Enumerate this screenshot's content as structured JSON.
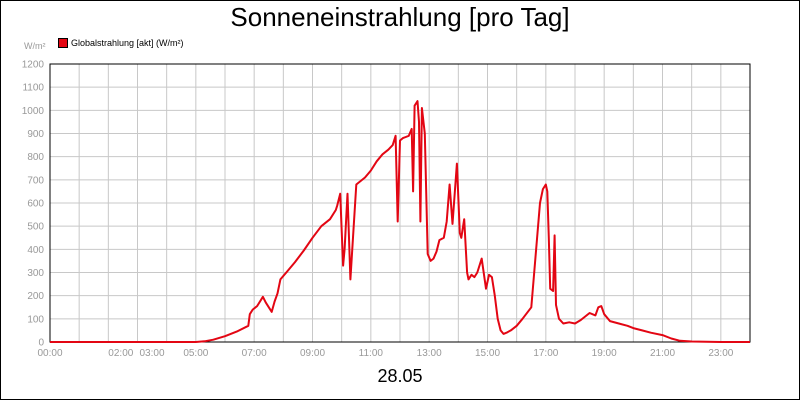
{
  "chart_data": {
    "type": "line",
    "title": "Sonneneinstrahlung [pro Tag]",
    "ylabel": "W/m²",
    "xlabel": "28.05",
    "ylim": [
      0,
      1200
    ],
    "xlim": [
      0,
      24
    ],
    "grid": true,
    "legend_position": "top-left",
    "yticks": [
      "0",
      "100",
      "200",
      "300",
      "400",
      "500",
      "600",
      "700",
      "800",
      "900",
      "1000",
      "1100",
      "1200"
    ],
    "xticks": [
      {
        "hour": 0,
        "label": "00:00"
      },
      {
        "hour": 2,
        "label": "02:00"
      },
      {
        "hour": 3,
        "label": "03:00"
      },
      {
        "hour": 5,
        "label": "05:00"
      },
      {
        "hour": 7,
        "label": "07:00"
      },
      {
        "hour": 9,
        "label": "09:00"
      },
      {
        "hour": 11,
        "label": "11:00"
      },
      {
        "hour": 13,
        "label": "13:00"
      },
      {
        "hour": 15,
        "label": "15:00"
      },
      {
        "hour": 17,
        "label": "17:00"
      },
      {
        "hour": 19,
        "label": "19:00"
      },
      {
        "hour": 21,
        "label": "21:00"
      },
      {
        "hour": 23,
        "label": "23:00"
      }
    ],
    "colors": {
      "series": "#e30613",
      "grid": "#c8c8c8",
      "axis": "#000000"
    },
    "series": [
      {
        "name": "Globalstrahlung [akt] (W/m²)",
        "x": [
          0,
          5.0,
          5.3,
          5.6,
          6.0,
          6.4,
          6.8,
          6.85,
          6.95,
          7.1,
          7.3,
          7.4,
          7.5,
          7.6,
          7.7,
          7.8,
          7.9,
          8.1,
          8.4,
          8.7,
          9.0,
          9.3,
          9.6,
          9.8,
          9.85,
          9.95,
          10.05,
          10.1,
          10.2,
          10.3,
          10.5,
          10.8,
          11.0,
          11.2,
          11.4,
          11.6,
          11.75,
          11.85,
          11.92,
          12.0,
          12.1,
          12.2,
          12.3,
          12.4,
          12.45,
          12.5,
          12.6,
          12.65,
          12.7,
          12.75,
          12.85,
          12.95,
          13.05,
          13.15,
          13.25,
          13.35,
          13.5,
          13.6,
          13.7,
          13.8,
          13.95,
          14.05,
          14.1,
          14.2,
          14.3,
          14.35,
          14.4,
          14.45,
          14.55,
          14.65,
          14.8,
          14.95,
          15.0,
          15.05,
          15.15,
          15.25,
          15.35,
          15.45,
          15.55,
          15.65,
          15.8,
          16.0,
          16.2,
          16.5,
          16.7,
          16.8,
          16.9,
          17.0,
          17.05,
          17.1,
          17.15,
          17.25,
          17.3,
          17.35,
          17.45,
          17.6,
          17.8,
          18.0,
          18.2,
          18.5,
          18.7,
          18.8,
          18.9,
          19.0,
          19.2,
          19.5,
          19.8,
          20.0,
          20.3,
          20.6,
          21.0,
          21.3,
          21.6,
          22.0,
          23.0,
          24.0
        ],
        "y": [
          0,
          0,
          3,
          10,
          25,
          45,
          70,
          120,
          140,
          155,
          195,
          170,
          150,
          130,
          175,
          210,
          270,
          300,
          345,
          395,
          450,
          500,
          530,
          570,
          590,
          640,
          330,
          400,
          640,
          270,
          680,
          710,
          740,
          780,
          810,
          830,
          850,
          890,
          520,
          870,
          880,
          885,
          890,
          920,
          650,
          1020,
          1040,
          950,
          520,
          1010,
          900,
          380,
          350,
          360,
          390,
          440,
          450,
          520,
          680,
          510,
          770,
          470,
          450,
          530,
          300,
          270,
          280,
          290,
          280,
          300,
          360,
          230,
          260,
          290,
          280,
          200,
          100,
          50,
          35,
          40,
          50,
          70,
          100,
          150,
          450,
          600,
          660,
          680,
          650,
          450,
          230,
          220,
          460,
          160,
          100,
          80,
          85,
          80,
          95,
          125,
          115,
          150,
          155,
          120,
          90,
          80,
          70,
          60,
          50,
          40,
          30,
          15,
          5,
          2,
          0,
          0
        ]
      }
    ]
  }
}
